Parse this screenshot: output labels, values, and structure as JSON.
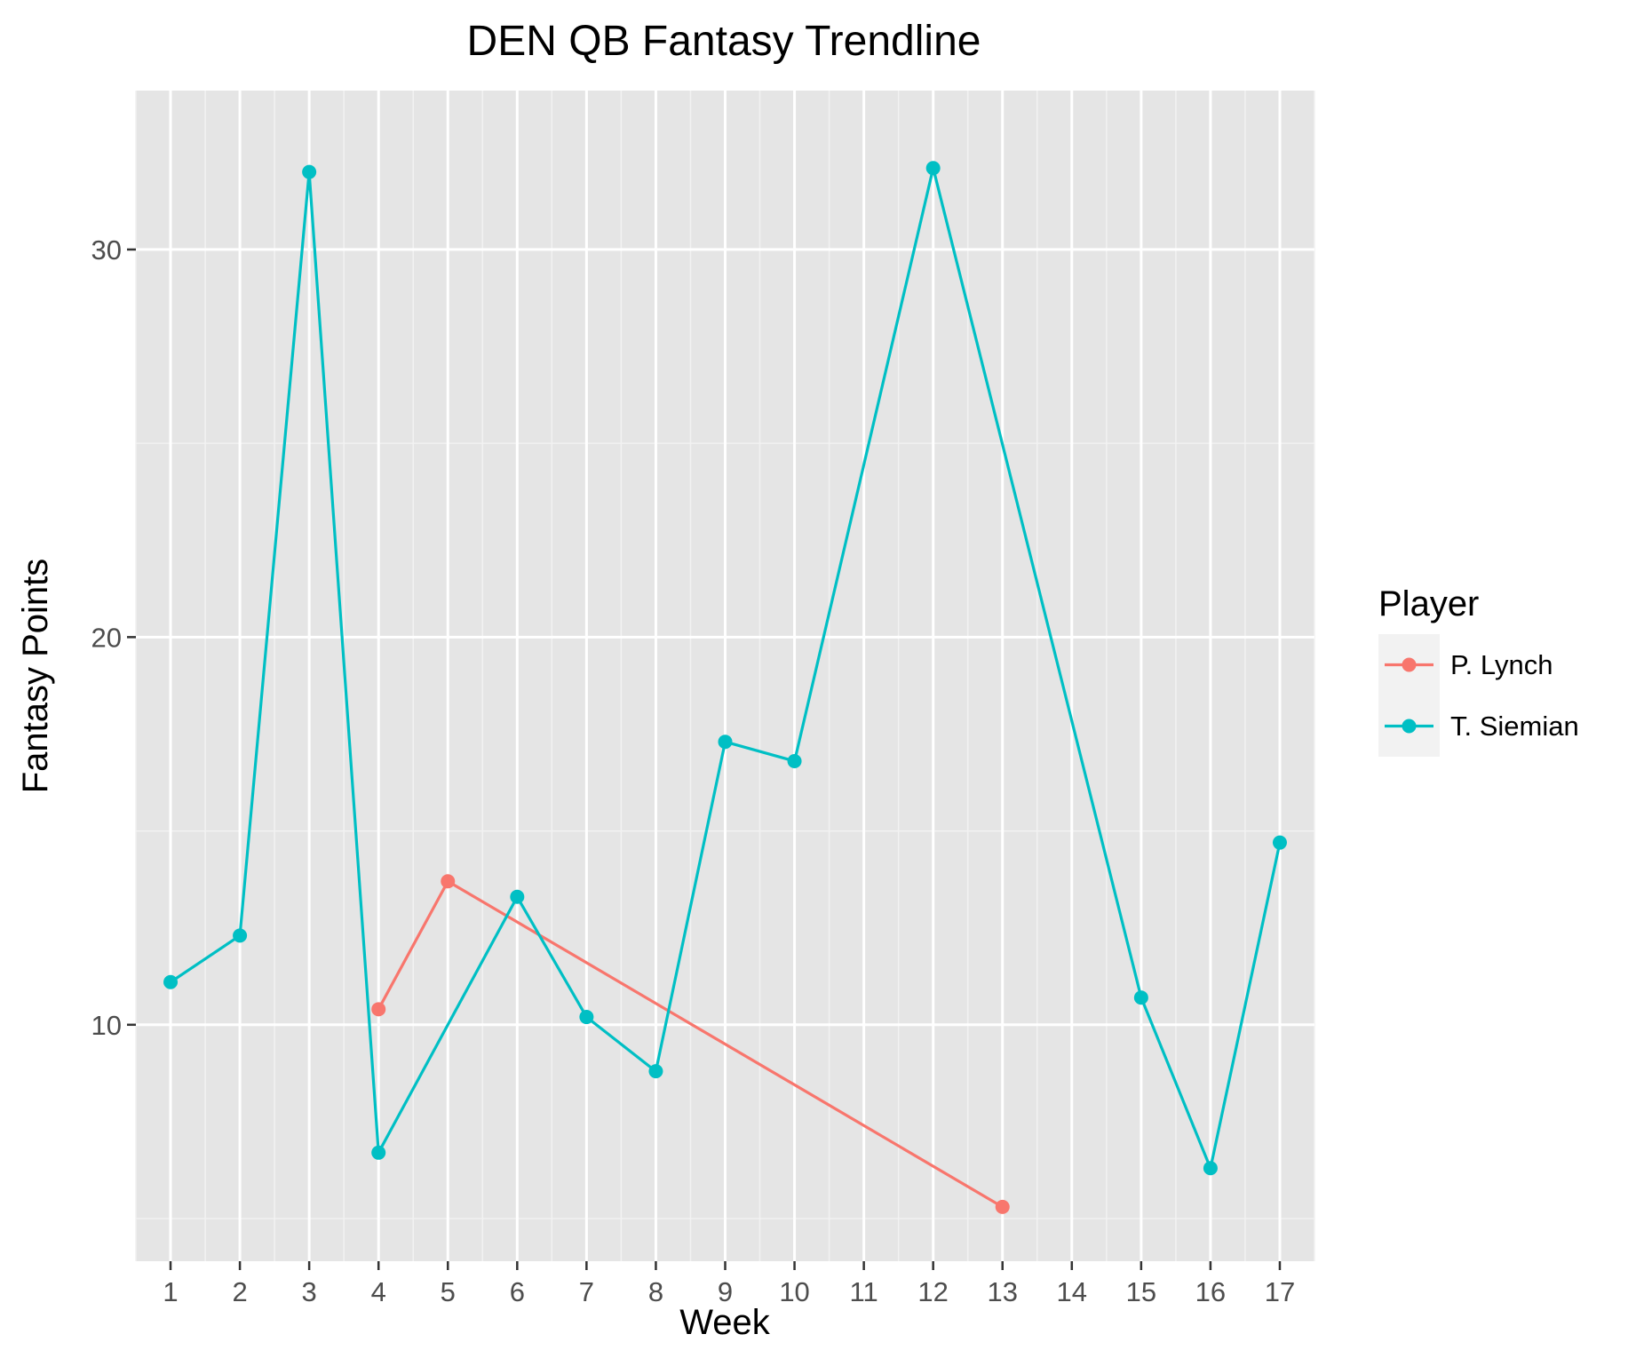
{
  "chart_data": {
    "type": "line",
    "title": "DEN QB Fantasy Trendline",
    "xlabel": "Week",
    "ylabel": "Fantasy Points",
    "x_ticks": [
      "1",
      "2",
      "3",
      "4",
      "5",
      "6",
      "7",
      "8",
      "9",
      "10",
      "11",
      "12",
      "13",
      "14",
      "15",
      "16",
      "17"
    ],
    "y_ticks": [
      10,
      20,
      30
    ],
    "xlim": [
      0.5,
      17.5
    ],
    "ylim": [
      3.9,
      34.1
    ],
    "grid": true,
    "legend": {
      "title": "Player",
      "position": "right"
    },
    "series": [
      {
        "name": "P. Lynch",
        "color": "#F8766D",
        "points": [
          {
            "x": 4,
            "y": 10.4
          },
          {
            "x": 5,
            "y": 13.7
          },
          {
            "x": 13,
            "y": 5.3
          }
        ]
      },
      {
        "name": "T. Siemian",
        "color": "#00BFC4",
        "points": [
          {
            "x": 1,
            "y": 11.1
          },
          {
            "x": 2,
            "y": 12.3
          },
          {
            "x": 3,
            "y": 32.0
          },
          {
            "x": 4,
            "y": 6.7
          },
          {
            "x": 6,
            "y": 13.3
          },
          {
            "x": 7,
            "y": 10.2
          },
          {
            "x": 8,
            "y": 8.8
          },
          {
            "x": 9,
            "y": 17.3
          },
          {
            "x": 10,
            "y": 16.8
          },
          {
            "x": 12,
            "y": 32.1
          },
          {
            "x": 15,
            "y": 10.7
          },
          {
            "x": 16,
            "y": 6.3
          },
          {
            "x": 17,
            "y": 14.7
          }
        ]
      }
    ]
  }
}
